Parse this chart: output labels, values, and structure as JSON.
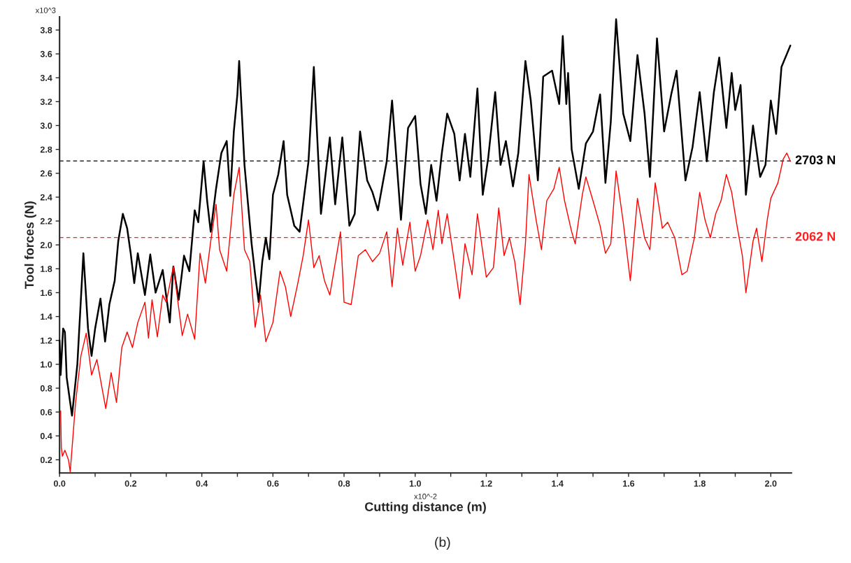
{
  "chart_data": {
    "type": "line",
    "xlabel": "Cutting distance (m)",
    "ylabel": "Tool forces (N)",
    "xlim": [
      0,
      2.058
    ],
    "ylim": [
      0.09,
      3.91
    ],
    "xticks": [
      {
        "value": 0,
        "label": "0.0"
      },
      {
        "value": 0.1,
        "label": null
      },
      0.2,
      {
        "value": 0.3,
        "label": null
      },
      0.4,
      {
        "value": 0.5,
        "label": null
      },
      0.6,
      {
        "value": 0.7,
        "label": null
      },
      0.8,
      {
        "value": 0.9,
        "label": null
      },
      {
        "value": 1.0,
        "label": "1.0"
      },
      {
        "value": 1.1,
        "label": null
      },
      1.2,
      {
        "value": 1.3,
        "label": null
      },
      1.4,
      {
        "value": 1.5,
        "label": null
      },
      1.6,
      {
        "value": 1.7,
        "label": null
      },
      1.8,
      {
        "value": 1.9,
        "label": null
      },
      {
        "value": 2.0,
        "label": "2.0"
      }
    ],
    "yticks": [
      0.2,
      0.4,
      0.6,
      0.8,
      {
        "value": 1.0,
        "label": "1.0"
      },
      1.2,
      1.4,
      1.6,
      1.8,
      {
        "value": 2.0,
        "label": "2.0"
      },
      2.2,
      2.4,
      2.6,
      2.8,
      {
        "value": 3.0,
        "label": "3.0"
      },
      3.2,
      3.4,
      3.6,
      3.8
    ],
    "grid": false,
    "legend": false,
    "line_style": "solid",
    "marker": "none",
    "series": [
      {
        "color": "#000000",
        "x": [
          0,
          0.003,
          0.01,
          0.015,
          0.02,
          0.035,
          0.05,
          0.067,
          0.08,
          0.09,
          0.1,
          0.115,
          0.128,
          0.14,
          0.155,
          0.165,
          0.178,
          0.19,
          0.2,
          0.21,
          0.22,
          0.24,
          0.255,
          0.27,
          0.29,
          0.31,
          0.32,
          0.335,
          0.35,
          0.365,
          0.38,
          0.39,
          0.405,
          0.415,
          0.425,
          0.44,
          0.455,
          0.47,
          0.48,
          0.49,
          0.5,
          0.505,
          0.52,
          0.54,
          0.55,
          0.56,
          0.57,
          0.58,
          0.59,
          0.6,
          0.615,
          0.63,
          0.64,
          0.66,
          0.675,
          0.7,
          0.715,
          0.735,
          0.76,
          0.775,
          0.795,
          0.815,
          0.83,
          0.845,
          0.865,
          0.88,
          0.895,
          0.92,
          0.935,
          0.96,
          0.98,
          1.0,
          1.015,
          1.03,
          1.045,
          1.06,
          1.075,
          1.09,
          1.11,
          1.125,
          1.14,
          1.155,
          1.175,
          1.19,
          1.205,
          1.225,
          1.24,
          1.255,
          1.275,
          1.29,
          1.31,
          1.325,
          1.345,
          1.36,
          1.385,
          1.405,
          1.415,
          1.425,
          1.43,
          1.44,
          1.46,
          1.48,
          1.5,
          1.52,
          1.535,
          1.55,
          1.565,
          1.585,
          1.605,
          1.625,
          1.645,
          1.66,
          1.68,
          1.7,
          1.72,
          1.735,
          1.76,
          1.78,
          1.8,
          1.82,
          1.84,
          1.855,
          1.875,
          1.89,
          1.9,
          1.915,
          1.93,
          1.95,
          1.97,
          1.985,
          2.0,
          2.015,
          2.03,
          2.055
        ],
        "values": [
          1.2,
          0.91,
          1.3,
          1.27,
          0.89,
          0.57,
          1.0,
          1.93,
          1.3,
          1.07,
          1.3,
          1.55,
          1.19,
          1.5,
          1.7,
          2.03,
          2.26,
          2.14,
          1.93,
          1.68,
          1.93,
          1.58,
          1.92,
          1.6,
          1.79,
          1.35,
          1.82,
          1.54,
          1.91,
          1.78,
          2.29,
          2.19,
          2.7,
          2.37,
          2.11,
          2.47,
          2.77,
          2.87,
          2.41,
          2.95,
          3.26,
          3.54,
          2.67,
          2.01,
          1.75,
          1.52,
          1.86,
          2.06,
          1.88,
          2.42,
          2.59,
          2.87,
          2.42,
          2.16,
          2.11,
          2.7,
          3.49,
          2.26,
          2.9,
          2.34,
          2.9,
          2.16,
          2.26,
          2.95,
          2.54,
          2.44,
          2.29,
          2.7,
          3.21,
          2.21,
          2.98,
          3.08,
          2.51,
          2.26,
          2.67,
          2.37,
          2.77,
          3.1,
          2.93,
          2.54,
          2.93,
          2.57,
          3.31,
          2.42,
          2.72,
          3.28,
          2.67,
          2.87,
          2.49,
          2.77,
          3.54,
          3.21,
          2.54,
          3.41,
          3.46,
          3.18,
          3.75,
          3.18,
          3.44,
          2.8,
          2.47,
          2.85,
          2.95,
          3.26,
          2.52,
          3.03,
          3.89,
          3.1,
          2.87,
          3.59,
          3.1,
          2.57,
          3.73,
          2.95,
          3.26,
          3.46,
          2.54,
          2.82,
          3.28,
          2.7,
          3.28,
          3.57,
          2.98,
          3.44,
          3.13,
          3.34,
          2.42,
          3.0,
          2.57,
          2.67,
          3.21,
          2.93,
          3.49,
          3.67
        ]
      },
      {
        "color": "#ff0000",
        "x": [
          0.003,
          0.005,
          0.008,
          0.015,
          0.025,
          0.03,
          0.045,
          0.06,
          0.075,
          0.09,
          0.105,
          0.12,
          0.13,
          0.145,
          0.16,
          0.175,
          0.19,
          0.205,
          0.22,
          0.24,
          0.25,
          0.26,
          0.275,
          0.29,
          0.3,
          0.32,
          0.345,
          0.36,
          0.38,
          0.395,
          0.41,
          0.425,
          0.44,
          0.45,
          0.47,
          0.49,
          0.505,
          0.52,
          0.535,
          0.55,
          0.565,
          0.58,
          0.6,
          0.62,
          0.635,
          0.65,
          0.67,
          0.685,
          0.7,
          0.715,
          0.73,
          0.745,
          0.76,
          0.79,
          0.8,
          0.82,
          0.84,
          0.86,
          0.88,
          0.9,
          0.92,
          0.935,
          0.95,
          0.965,
          0.985,
          1.0,
          1.015,
          1.035,
          1.05,
          1.065,
          1.075,
          1.09,
          1.11,
          1.125,
          1.14,
          1.16,
          1.175,
          1.2,
          1.22,
          1.235,
          1.25,
          1.265,
          1.28,
          1.295,
          1.31,
          1.32,
          1.34,
          1.355,
          1.37,
          1.39,
          1.405,
          1.42,
          1.44,
          1.45,
          1.47,
          1.48,
          1.5,
          1.52,
          1.535,
          1.55,
          1.565,
          1.585,
          1.605,
          1.625,
          1.645,
          1.66,
          1.675,
          1.695,
          1.71,
          1.73,
          1.75,
          1.765,
          1.785,
          1.8,
          1.815,
          1.83,
          1.845,
          1.86,
          1.875,
          1.89,
          1.905,
          1.92,
          1.93,
          1.95,
          1.96,
          1.975,
          1.99,
          2.0,
          2.02,
          2.035,
          2.045,
          2.055
        ],
        "values": [
          0.61,
          0.3,
          0.23,
          0.28,
          0.2,
          0.1,
          0.68,
          1.07,
          1.26,
          0.91,
          1.04,
          0.79,
          0.63,
          0.93,
          0.68,
          1.14,
          1.27,
          1.14,
          1.35,
          1.52,
          1.22,
          1.54,
          1.23,
          1.58,
          1.52,
          1.82,
          1.24,
          1.42,
          1.21,
          1.93,
          1.68,
          2.03,
          2.34,
          1.96,
          1.78,
          2.42,
          2.65,
          1.96,
          1.86,
          1.31,
          1.58,
          1.19,
          1.35,
          1.78,
          1.65,
          1.4,
          1.68,
          1.91,
          2.21,
          1.81,
          1.91,
          1.7,
          1.58,
          2.11,
          1.52,
          1.5,
          1.91,
          1.96,
          1.86,
          1.93,
          2.11,
          1.65,
          2.14,
          1.83,
          2.19,
          1.78,
          1.91,
          2.21,
          1.96,
          2.29,
          2.01,
          2.26,
          1.86,
          1.55,
          2.01,
          1.75,
          2.26,
          1.73,
          1.81,
          2.31,
          1.91,
          2.06,
          1.86,
          1.5,
          2.01,
          2.59,
          2.21,
          1.96,
          2.37,
          2.47,
          2.65,
          2.37,
          2.11,
          2.01,
          2.42,
          2.57,
          2.37,
          2.16,
          1.93,
          2.01,
          2.62,
          2.19,
          1.7,
          2.39,
          2.06,
          1.96,
          2.52,
          2.14,
          2.19,
          2.06,
          1.75,
          1.78,
          2.06,
          2.44,
          2.21,
          2.06,
          2.26,
          2.37,
          2.59,
          2.44,
          2.16,
          1.91,
          1.6,
          2.03,
          2.14,
          1.86,
          2.21,
          2.39,
          2.52,
          2.72,
          2.77,
          2.7
        ]
      }
    ],
    "ref_lines": [
      {
        "axis": "y",
        "value": 2.703,
        "label": "2703 N",
        "color": "#000000",
        "line_style": "dashed"
      },
      {
        "axis": "y",
        "value": 2.062,
        "label": "2062 N",
        "color": "#ff2020",
        "line_style": "dashed"
      }
    ],
    "annotations": [
      "x10^3",
      "x10^-2",
      "(b)"
    ]
  }
}
